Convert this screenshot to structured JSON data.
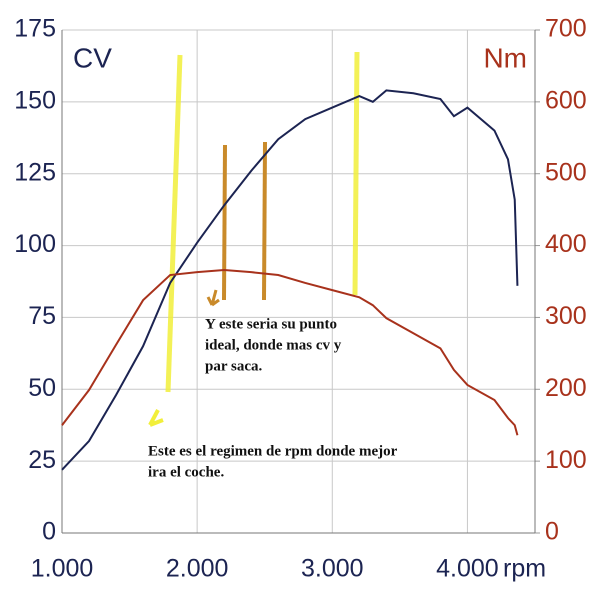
{
  "chart_data": {
    "type": "line",
    "x": [
      1000,
      1200,
      1400,
      1600,
      1800,
      2000,
      2200,
      2400,
      2600,
      2800,
      3000,
      3200,
      3300,
      3400,
      3600,
      3800,
      3900,
      4000,
      4200,
      4300,
      4350,
      4370
    ],
    "series": [
      {
        "name": "CV",
        "color": "#1c2452",
        "values": [
          22,
          32,
          48,
          65,
          87,
          101,
          114,
          126,
          137,
          144,
          148,
          152,
          150,
          154,
          153,
          151,
          145,
          148,
          140,
          130,
          116,
          86
        ]
      },
      {
        "name": "Nm",
        "color": "#a8321c",
        "axis": "y2",
        "values": [
          150,
          199,
          262,
          324,
          359,
          363,
          366,
          363,
          359,
          348,
          338,
          328,
          317,
          299,
          278,
          257,
          227,
          206,
          185,
          160,
          150,
          136
        ]
      }
    ],
    "x_label": "rpm",
    "xlim": [
      1000,
      4500
    ],
    "xticks": [
      {
        "value": 1000,
        "label": "1.000"
      },
      {
        "value": 2000,
        "label": "2.000"
      },
      {
        "value": 3000,
        "label": "3.000"
      },
      {
        "value": 4000,
        "label": "4.000"
      }
    ],
    "ylim": [
      0,
      175
    ],
    "yticks": [
      0,
      25,
      50,
      75,
      100,
      125,
      150,
      175
    ],
    "y2lim": [
      0,
      700
    ],
    "y2ticks": [
      0,
      100,
      200,
      300,
      400,
      500,
      600,
      700
    ],
    "grid": true,
    "annotations": [
      {
        "lines": [
          "Y este seria su punto",
          "ideal, donde mas cv y",
          "par saca."
        ]
      },
      {
        "lines": [
          "Este es el regimen de rpm donde mejor",
          "ira el coche."
        ]
      }
    ]
  }
}
